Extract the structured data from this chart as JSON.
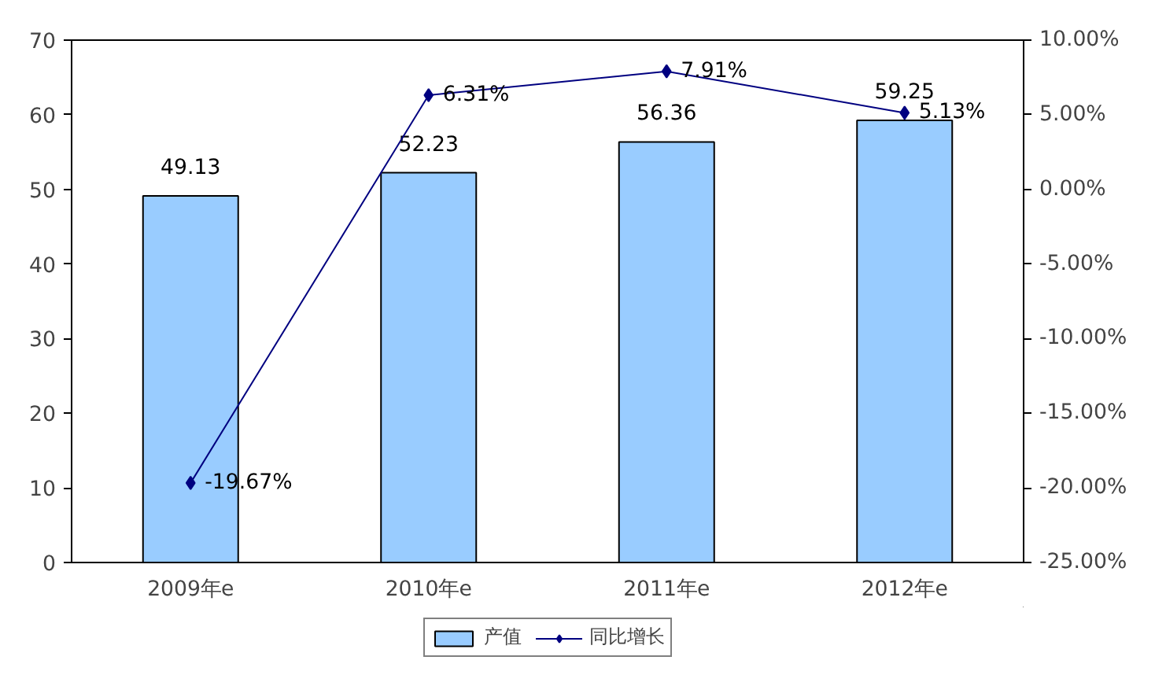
{
  "chart_data": {
    "type": "bar",
    "categories": [
      "2009年e",
      "2010年e",
      "2011年e",
      "2012年e"
    ],
    "series": [
      {
        "name": "产值",
        "color": "#99ccff",
        "values": [
          49.13,
          52.23,
          56.36,
          59.25
        ],
        "value_labels": [
          "49.13",
          "52.23",
          "56.36",
          "59.25"
        ]
      },
      {
        "name": "同比增长",
        "type": "line",
        "axis": "y2",
        "color": "#000080",
        "marker": "diamond",
        "values": [
          -19.67,
          6.31,
          7.91,
          5.13
        ],
        "value_labels": [
          "-19.67%",
          "6.31%",
          "7.91%",
          "5.13%"
        ]
      }
    ],
    "ylim": [
      0,
      70
    ],
    "yticks": [
      0,
      10,
      20,
      30,
      40,
      50,
      60,
      70
    ],
    "y2lim": [
      -25,
      10
    ],
    "y2ticks": [
      {
        "value": -25,
        "label": "-25.00%"
      },
      {
        "value": -20,
        "label": "-20.00%"
      },
      {
        "value": -15,
        "label": "-15.00%"
      },
      {
        "value": -10,
        "label": "-10.00%"
      },
      {
        "value": -5,
        "label": "-5.00%"
      },
      {
        "value": 0,
        "label": "0.00%"
      },
      {
        "value": 5,
        "label": "5.00%"
      },
      {
        "value": 10,
        "label": "10.00%"
      }
    ],
    "legend": "bottom"
  }
}
